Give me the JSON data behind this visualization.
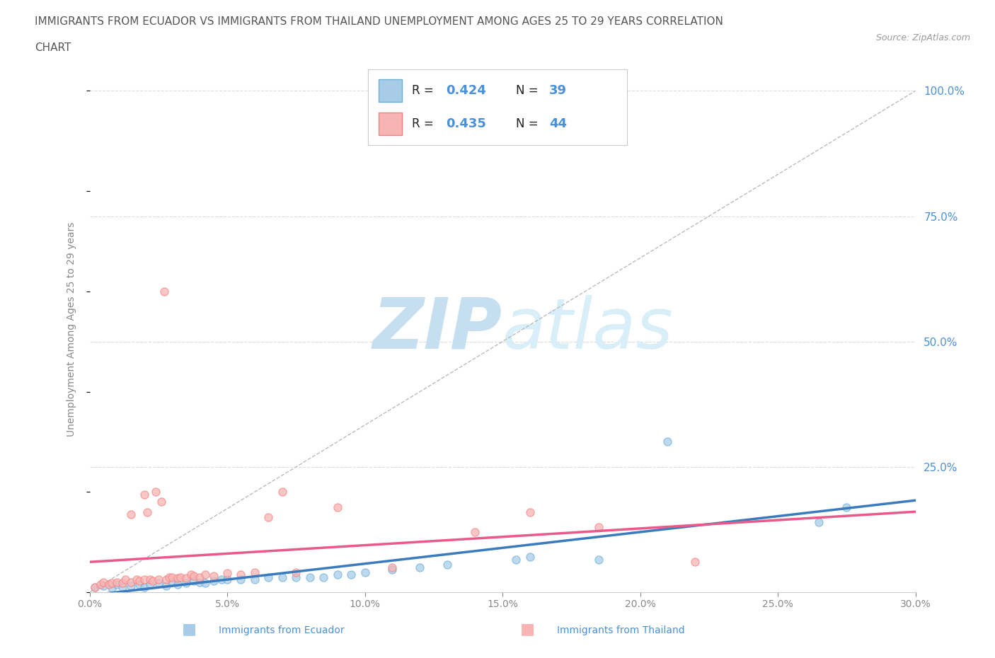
{
  "title_line1": "IMMIGRANTS FROM ECUADOR VS IMMIGRANTS FROM THAILAND UNEMPLOYMENT AMONG AGES 25 TO 29 YEARS CORRELATION",
  "title_line2": "CHART",
  "source_text": "Source: ZipAtlas.com",
  "ylabel": "Unemployment Among Ages 25 to 29 years",
  "xlim": [
    0.0,
    0.3
  ],
  "ylim": [
    0.0,
    1.05
  ],
  "xtick_values": [
    0.0,
    0.05,
    0.1,
    0.15,
    0.2,
    0.25,
    0.3
  ],
  "xtick_labels": [
    "0.0%",
    "5.0%",
    "10.0%",
    "15.0%",
    "20.0%",
    "25.0%",
    "30.0%"
  ],
  "ytick_values_right": [
    0.25,
    0.5,
    0.75,
    1.0
  ],
  "ytick_labels_right": [
    "25.0%",
    "50.0%",
    "75.0%",
    "100.0%"
  ],
  "ecuador_color": "#a8cce8",
  "ecuador_edge": "#6baed6",
  "thailand_color": "#f8b4b4",
  "thailand_edge": "#f48080",
  "ecuador_line_color": "#3a7bbf",
  "thailand_line_color": "#e85a8a",
  "legend_R_ecuador": "0.424",
  "legend_N_ecuador": "39",
  "legend_R_thailand": "0.435",
  "legend_N_thailand": "44",
  "legend_label_ecuador": "Immigrants from Ecuador",
  "legend_label_thailand": "Immigrants from Thailand",
  "ecuador_x": [
    0.002,
    0.005,
    0.008,
    0.01,
    0.012,
    0.015,
    0.018,
    0.02,
    0.022,
    0.025,
    0.028,
    0.03,
    0.032,
    0.035,
    0.038,
    0.04,
    0.042,
    0.045,
    0.048,
    0.05,
    0.055,
    0.06,
    0.065,
    0.07,
    0.075,
    0.08,
    0.085,
    0.09,
    0.095,
    0.1,
    0.11,
    0.12,
    0.13,
    0.155,
    0.16,
    0.185,
    0.21,
    0.265,
    0.275
  ],
  "ecuador_y": [
    0.01,
    0.012,
    0.008,
    0.015,
    0.01,
    0.012,
    0.015,
    0.01,
    0.015,
    0.018,
    0.012,
    0.02,
    0.015,
    0.018,
    0.022,
    0.02,
    0.018,
    0.022,
    0.025,
    0.025,
    0.025,
    0.025,
    0.03,
    0.03,
    0.03,
    0.03,
    0.03,
    0.035,
    0.035,
    0.04,
    0.045,
    0.05,
    0.055,
    0.065,
    0.07,
    0.065,
    0.3,
    0.14,
    0.17
  ],
  "thailand_x": [
    0.002,
    0.004,
    0.005,
    0.007,
    0.008,
    0.01,
    0.012,
    0.013,
    0.015,
    0.015,
    0.017,
    0.018,
    0.02,
    0.02,
    0.021,
    0.022,
    0.023,
    0.024,
    0.025,
    0.026,
    0.027,
    0.028,
    0.029,
    0.03,
    0.032,
    0.033,
    0.035,
    0.037,
    0.038,
    0.04,
    0.042,
    0.045,
    0.05,
    0.055,
    0.06,
    0.065,
    0.07,
    0.075,
    0.09,
    0.11,
    0.14,
    0.16,
    0.185,
    0.22
  ],
  "thailand_y": [
    0.01,
    0.015,
    0.02,
    0.015,
    0.018,
    0.02,
    0.018,
    0.025,
    0.02,
    0.155,
    0.025,
    0.022,
    0.025,
    0.195,
    0.16,
    0.025,
    0.022,
    0.2,
    0.025,
    0.18,
    0.6,
    0.025,
    0.03,
    0.03,
    0.028,
    0.03,
    0.028,
    0.035,
    0.032,
    0.03,
    0.035,
    0.032,
    0.038,
    0.035,
    0.04,
    0.15,
    0.2,
    0.04,
    0.17,
    0.05,
    0.12,
    0.16,
    0.13,
    0.06
  ],
  "bg_color": "#ffffff",
  "grid_color": "#dddddd",
  "watermark_color": "#d8eef8",
  "title_color": "#555555",
  "axis_color": "#888888",
  "right_label_color": "#4a90d9",
  "diag_line_color": "#bbbbbb"
}
